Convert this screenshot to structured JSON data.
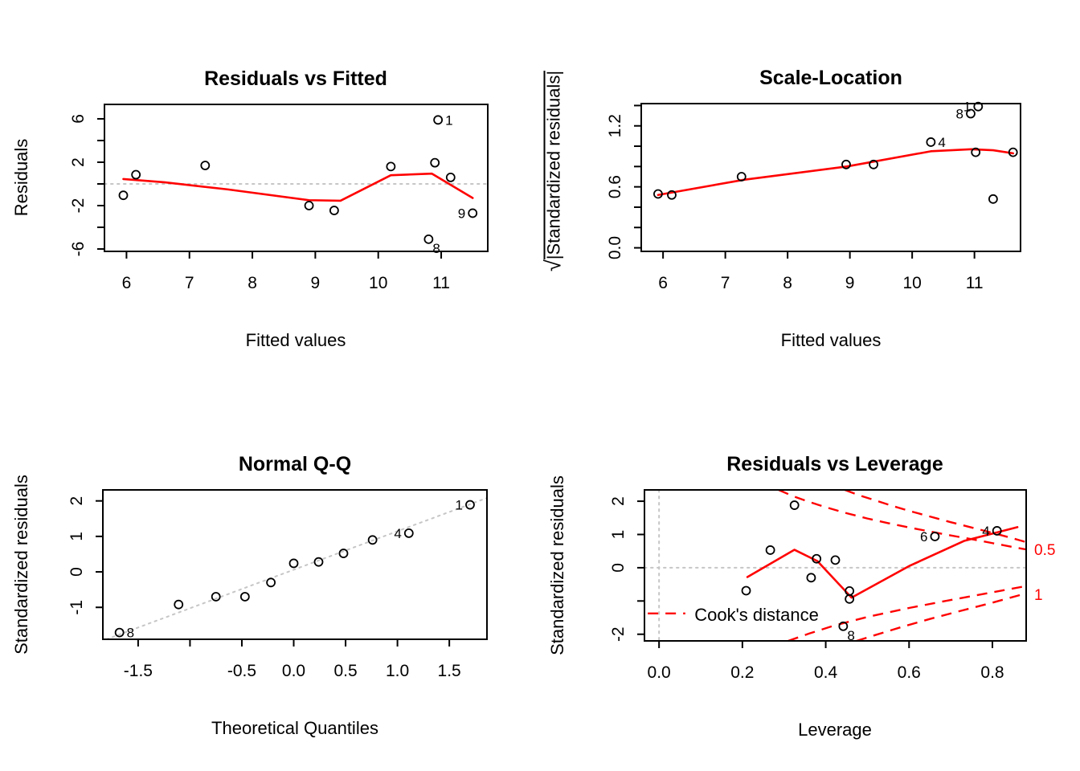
{
  "figure": {
    "background": "#ffffff",
    "description": "R lm diagnostic plots 2x2"
  },
  "colors": {
    "accent_red": "#ff0000",
    "reference_gray": "#c6c6c6",
    "point_black": "#000000"
  },
  "chart_data": [
    {
      "id": "residuals-vs-fitted",
      "type": "scatter",
      "title": "Residuals vs Fitted",
      "xlabel": "Fitted values",
      "ylabel": "Residuals",
      "xlim": [
        5.65,
        11.74
      ],
      "ylim": [
        -6.22,
        7.33
      ],
      "grid": false,
      "xticks": {
        "values": [
          6,
          7,
          8,
          9,
          10,
          11
        ],
        "labels": [
          "6",
          "7",
          "8",
          "9",
          "10",
          "11"
        ]
      },
      "yticks": {
        "values": [
          -6,
          -4,
          -2,
          0,
          2,
          4,
          6
        ],
        "labels": [
          "-6",
          "",
          "-2",
          "",
          "2",
          "",
          "6"
        ]
      },
      "ref_lines": [
        {
          "type": "h",
          "at": 0
        }
      ],
      "points": [
        {
          "x": 5.95,
          "y": -1.05
        },
        {
          "x": 6.15,
          "y": 0.85
        },
        {
          "x": 7.25,
          "y": 1.7
        },
        {
          "x": 8.9,
          "y": -2.0
        },
        {
          "x": 9.3,
          "y": -2.45
        },
        {
          "x": 10.2,
          "y": 1.6
        },
        {
          "x": 10.95,
          "y": 5.9,
          "label": "1",
          "side": "right"
        },
        {
          "x": 10.9,
          "y": 1.95
        },
        {
          "x": 11.15,
          "y": 0.6
        },
        {
          "x": 10.8,
          "y": -5.1,
          "label": "8",
          "side": "below-right"
        },
        {
          "x": 11.5,
          "y": -2.7,
          "label": "9",
          "side": "left"
        }
      ],
      "smooth_line": [
        [
          5.95,
          0.45
        ],
        [
          6.6,
          0.15
        ],
        [
          7.6,
          -0.5
        ],
        [
          8.9,
          -1.5
        ],
        [
          9.4,
          -1.55
        ],
        [
          10.2,
          0.8
        ],
        [
          10.85,
          0.95
        ],
        [
          11.5,
          -1.3
        ]
      ]
    },
    {
      "id": "scale-location",
      "type": "scatter",
      "title": "Scale-Location",
      "xlabel": "Fitted values",
      "ylabel": "√|Standardized residuals|",
      "xlim": [
        5.65,
        11.74
      ],
      "ylim": [
        -0.035,
        1.419
      ],
      "grid": false,
      "xticks": {
        "values": [
          6,
          7,
          8,
          9,
          10,
          11
        ],
        "labels": [
          "6",
          "7",
          "8",
          "9",
          "10",
          "11"
        ]
      },
      "yticks": {
        "values": [
          0,
          0.2,
          0.4,
          0.6,
          0.8,
          1.0,
          1.2,
          1.4
        ],
        "labels": [
          "0.0",
          "",
          "",
          "0.6",
          "",
          "",
          "1.2",
          ""
        ]
      },
      "ref_lines": [],
      "points": [
        {
          "x": 5.92,
          "y": 0.53
        },
        {
          "x": 6.14,
          "y": 0.52
        },
        {
          "x": 7.26,
          "y": 0.7
        },
        {
          "x": 8.94,
          "y": 0.82
        },
        {
          "x": 9.38,
          "y": 0.82
        },
        {
          "x": 10.3,
          "y": 1.04,
          "label": "4",
          "side": "right"
        },
        {
          "x": 10.94,
          "y": 1.32,
          "label": "8",
          "side": "left"
        },
        {
          "x": 11.06,
          "y": 1.39,
          "label": "1",
          "side": "left"
        },
        {
          "x": 11.02,
          "y": 0.94
        },
        {
          "x": 11.3,
          "y": 0.48
        },
        {
          "x": 11.62,
          "y": 0.94
        }
      ],
      "smooth_line": [
        [
          5.92,
          0.52
        ],
        [
          7.3,
          0.67
        ],
        [
          8.95,
          0.8
        ],
        [
          10.3,
          0.95
        ],
        [
          10.95,
          0.97
        ],
        [
          11.3,
          0.96
        ],
        [
          11.62,
          0.93
        ]
      ]
    },
    {
      "id": "normal-qq",
      "type": "scatter",
      "title": "Normal Q-Q",
      "xlabel": "Theoretical Quantiles",
      "ylabel": "Standardized residuals",
      "xlim": [
        -1.84,
        1.863
      ],
      "ylim": [
        -1.9,
        2.31
      ],
      "grid": false,
      "xticks": {
        "values": [
          -1.5,
          -1.0,
          -0.5,
          0,
          0.5,
          1.0,
          1.5
        ],
        "labels": [
          "-1.5",
          "",
          "-0.5",
          "0.0",
          "0.5",
          "1.0",
          "1.5"
        ]
      },
      "yticks": {
        "values": [
          -1,
          0,
          1,
          2
        ],
        "labels": [
          "-1",
          "0",
          "1",
          "2"
        ]
      },
      "ref_lines": [
        {
          "type": "ab",
          "x1": -1.805,
          "y1": -1.9,
          "x2": 1.863,
          "y2": 2.083
        }
      ],
      "points": [
        {
          "x": -1.68,
          "y": -1.71,
          "label": "8",
          "side": "right"
        },
        {
          "x": -1.11,
          "y": -0.92
        },
        {
          "x": -0.75,
          "y": -0.7
        },
        {
          "x": -0.47,
          "y": -0.7
        },
        {
          "x": -0.22,
          "y": -0.3
        },
        {
          "x": 0.0,
          "y": 0.24
        },
        {
          "x": 0.24,
          "y": 0.28
        },
        {
          "x": 0.48,
          "y": 0.52
        },
        {
          "x": 0.76,
          "y": 0.9
        },
        {
          "x": 1.11,
          "y": 1.09,
          "label": "4",
          "side": "left"
        },
        {
          "x": 1.7,
          "y": 1.89,
          "label": "1",
          "side": "left"
        }
      ],
      "smooth_line": []
    },
    {
      "id": "residuals-vs-leverage",
      "type": "scatter",
      "title": "Residuals vs Leverage",
      "xlabel": "Leverage",
      "ylabel": "Standardized residuals",
      "xlim": [
        -0.035,
        0.881
      ],
      "ylim": [
        -2.2,
        2.34
      ],
      "grid": false,
      "xticks": {
        "values": [
          0,
          0.2,
          0.4,
          0.6,
          0.8
        ],
        "labels": [
          "0.0",
          "0.2",
          "0.4",
          "0.6",
          "0.8"
        ]
      },
      "yticks": {
        "values": [
          -2,
          -1,
          0,
          1,
          2
        ],
        "labels": [
          "-2",
          "",
          "0",
          "1",
          "2"
        ]
      },
      "ref_lines": [
        {
          "type": "h",
          "at": 0
        },
        {
          "type": "v",
          "at": 0
        }
      ],
      "points": [
        {
          "x": 0.209,
          "y": -0.69
        },
        {
          "x": 0.267,
          "y": 0.53
        },
        {
          "x": 0.325,
          "y": 1.88
        },
        {
          "x": 0.365,
          "y": -0.3
        },
        {
          "x": 0.378,
          "y": 0.27
        },
        {
          "x": 0.423,
          "y": 0.23
        },
        {
          "x": 0.442,
          "y": -1.76,
          "label": "8",
          "side": "below-right"
        },
        {
          "x": 0.457,
          "y": -0.7
        },
        {
          "x": 0.457,
          "y": -0.94
        },
        {
          "x": 0.662,
          "y": 0.94,
          "label": "6",
          "side": "left"
        },
        {
          "x": 0.811,
          "y": 1.11,
          "label": "4",
          "side": "left"
        }
      ],
      "smooth_line": [
        [
          0.212,
          -0.28
        ],
        [
          0.325,
          0.54
        ],
        [
          0.38,
          0.2
        ],
        [
          0.462,
          -0.9
        ],
        [
          0.6,
          0.05
        ],
        [
          0.733,
          0.81
        ],
        [
          0.86,
          1.22
        ]
      ],
      "cook_contours": [
        {
          "level": "0.5",
          "points": [
            [
              0.287,
              2.34
            ],
            [
              0.32,
              2.16
            ],
            [
              0.36,
              1.98
            ],
            [
              0.4,
              1.82
            ],
            [
              0.45,
              1.64
            ],
            [
              0.5,
              1.48
            ],
            [
              0.55,
              1.34
            ],
            [
              0.6,
              1.21
            ],
            [
              0.65,
              1.09
            ],
            [
              0.7,
              0.97
            ],
            [
              0.75,
              0.86
            ],
            [
              0.8,
              0.74
            ],
            [
              0.85,
              0.62
            ],
            [
              0.881,
              0.55
            ]
          ]
        },
        {
          "level": "1",
          "points": [
            [
              0.446,
              2.34
            ],
            [
              0.48,
              2.18
            ],
            [
              0.52,
              2.02
            ],
            [
              0.56,
              1.86
            ],
            [
              0.6,
              1.71
            ],
            [
              0.65,
              1.54
            ],
            [
              0.7,
              1.37
            ],
            [
              0.75,
              1.21
            ],
            [
              0.8,
              1.05
            ],
            [
              0.85,
              0.88
            ],
            [
              0.881,
              0.77
            ]
          ]
        },
        {
          "level": "0.5",
          "points": [
            [
              0.31,
              -2.2
            ],
            [
              0.36,
              -1.98
            ],
            [
              0.42,
              -1.74
            ],
            [
              0.5,
              -1.48
            ],
            [
              0.6,
              -1.21
            ],
            [
              0.7,
              -0.97
            ],
            [
              0.8,
              -0.74
            ],
            [
              0.881,
              -0.55
            ]
          ]
        },
        {
          "level": "1",
          "points": [
            [
              0.474,
              -2.2
            ],
            [
              0.52,
              -2.02
            ],
            [
              0.58,
              -1.79
            ],
            [
              0.65,
              -1.54
            ],
            [
              0.72,
              -1.31
            ],
            [
              0.8,
              -1.05
            ],
            [
              0.881,
              -0.77
            ]
          ]
        }
      ],
      "contour_margin_labels": [
        {
          "text": "0.5",
          "y": 0.55
        },
        {
          "text": "1",
          "y": -0.8
        }
      ],
      "legend": {
        "label": "Cook's distance",
        "line_y": -1.375,
        "line_x": [
          -0.027,
          0.063
        ],
        "text_x": 0.085,
        "text_y": -1.4
      }
    }
  ]
}
